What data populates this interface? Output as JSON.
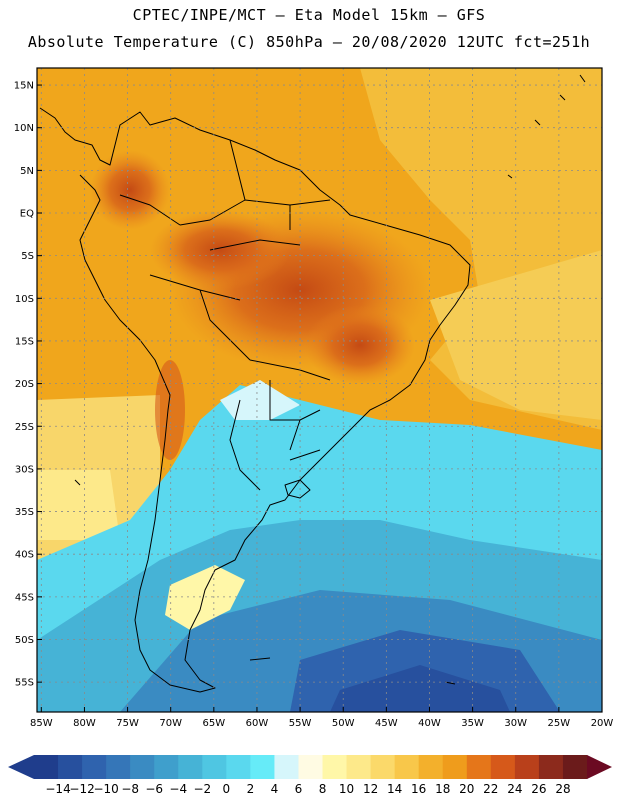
{
  "header": {
    "title_line1": "CPTEC/INPE/MCT –  Eta Model 15km – GFS",
    "title_line2": "Absolute Temperature (C) 850hPa – 20/08/2020 12UTC fct=251h"
  },
  "map": {
    "lat_labels": [
      "15N",
      "10N",
      "5N",
      "EQ",
      "5S",
      "10S",
      "15S",
      "20S",
      "25S",
      "30S",
      "35S",
      "40S",
      "45S",
      "50S",
      "55S"
    ],
    "lat_values": [
      15,
      10,
      5,
      0,
      -5,
      -10,
      -15,
      -20,
      -25,
      -30,
      -35,
      -40,
      -45,
      -50,
      -55
    ],
    "lon_labels": [
      "85W",
      "80W",
      "75W",
      "70W",
      "65W",
      "60W",
      "55W",
      "50W",
      "45W",
      "40W",
      "35W",
      "30W",
      "25W",
      "20W"
    ],
    "lon_values": [
      -85,
      -80,
      -75,
      -70,
      -65,
      -60,
      -55,
      -50,
      -45,
      -40,
      -35,
      -30,
      -25,
      -20
    ],
    "extent": {
      "lon_min": -85.5,
      "lon_max": -20,
      "lat_min": -58.5,
      "lat_max": 17
    }
  },
  "colorbar": {
    "labels": [
      "-14",
      "-12",
      "-10",
      "-8",
      "-6",
      "-4",
      "-2",
      "0",
      "2",
      "4",
      "6",
      "8",
      "10",
      "12",
      "14",
      "16",
      "18",
      "20",
      "22",
      "24",
      "26",
      "28"
    ],
    "colors": [
      "#1f3d8c",
      "#27509e",
      "#2f63ae",
      "#3576b8",
      "#3a8bc2",
      "#3f9fcc",
      "#46b3d6",
      "#4fc6e2",
      "#5ad8ee",
      "#66ebf8",
      "#d6f6fb",
      "#fffbe3",
      "#fff7a8",
      "#fde98a",
      "#fbd96a",
      "#f8c74a",
      "#f3b02c",
      "#ef9c1c",
      "#e5761a",
      "#d6591a",
      "#b9401b",
      "#8c2a1c",
      "#6b1b1b"
    ]
  }
}
